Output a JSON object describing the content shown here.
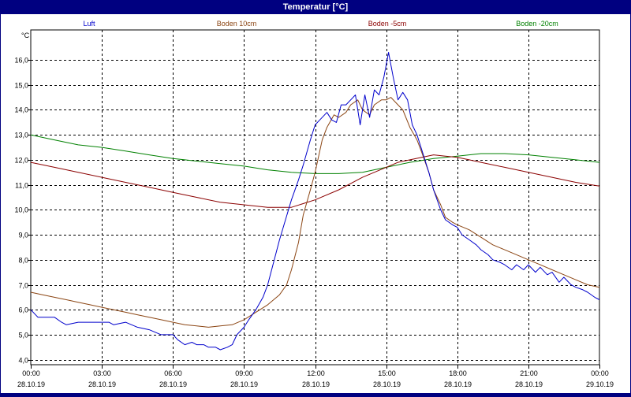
{
  "window": {
    "title": "Temperatur [°C]"
  },
  "colors": {
    "Luft": "#0000cc",
    "Boden10": "#8b4513",
    "Boden5": "#8b0000",
    "Boden20": "#008000",
    "grid": "#000000",
    "frame": "#000080"
  },
  "chart_data": {
    "type": "line",
    "title": "Temperatur [°C]",
    "ylabel": "°C",
    "ylim": [
      3.8,
      17.2
    ],
    "yticks": [
      "4,0",
      "5,0",
      "6,0",
      "7,0",
      "8,0",
      "9,0",
      "10,0",
      "11,0",
      "12,0",
      "13,0",
      "14,0",
      "15,0",
      "16,0"
    ],
    "xlim": [
      0,
      24
    ],
    "xticks": [
      {
        "time": "00:00",
        "date": "28.10.19",
        "h": 0
      },
      {
        "time": "03:00",
        "date": "28.10.19",
        "h": 3
      },
      {
        "time": "06:00",
        "date": "28.10.19",
        "h": 6
      },
      {
        "time": "09:00",
        "date": "28.10.19",
        "h": 9
      },
      {
        "time": "12:00",
        "date": "28.10.19",
        "h": 12
      },
      {
        "time": "15:00",
        "date": "28.10.19",
        "h": 15
      },
      {
        "time": "18:00",
        "date": "28.10.19",
        "h": 18
      },
      {
        "time": "21:00",
        "date": "28.10.19",
        "h": 21
      },
      {
        "time": "00:00",
        "date": "29.10.19",
        "h": 24
      }
    ],
    "grid": true,
    "legend_position": "top",
    "series": [
      {
        "name": "Luft",
        "color": "#0000cc",
        "x": [
          0,
          0.3,
          0.5,
          1,
          1.3,
          1.5,
          2,
          2.5,
          3,
          3.3,
          3.5,
          4,
          4.5,
          5,
          5.5,
          6,
          6.2,
          6.5,
          6.8,
          7,
          7.3,
          7.5,
          7.8,
          8,
          8.3,
          8.5,
          8.7,
          9,
          9.2,
          9.5,
          9.8,
          10,
          10.5,
          11,
          11.3,
          11.5,
          11.8,
          12,
          12.2,
          12.5,
          12.7,
          12.9,
          13.1,
          13.3,
          13.5,
          13.7,
          13.9,
          14.1,
          14.3,
          14.5,
          14.7,
          14.9,
          15.1,
          15.3,
          15.5,
          15.7,
          15.9,
          16.1,
          16.3,
          16.5,
          16.8,
          17,
          17.3,
          17.5,
          17.8,
          18,
          18.2,
          18.5,
          18.8,
          19,
          19.3,
          19.5,
          19.8,
          20,
          20.3,
          20.5,
          20.8,
          21,
          21.3,
          21.5,
          21.8,
          22,
          22.3,
          22.5,
          22.8,
          23,
          23.3,
          23.5,
          23.8,
          24
        ],
        "y": [
          6.0,
          5.7,
          5.7,
          5.7,
          5.5,
          5.4,
          5.5,
          5.5,
          5.5,
          5.5,
          5.4,
          5.5,
          5.3,
          5.2,
          5.0,
          5.0,
          4.8,
          4.6,
          4.7,
          4.6,
          4.6,
          4.5,
          4.5,
          4.4,
          4.5,
          4.6,
          5.0,
          5.3,
          5.6,
          6.0,
          6.5,
          7.0,
          8.8,
          10.4,
          11.2,
          11.8,
          12.8,
          13.4,
          13.6,
          13.9,
          13.6,
          13.5,
          14.2,
          14.2,
          14.4,
          14.6,
          13.4,
          14.6,
          13.7,
          14.8,
          14.6,
          15.3,
          16.3,
          15.3,
          14.4,
          14.7,
          14.4,
          13.4,
          13.0,
          12.4,
          11.5,
          10.8,
          10.0,
          9.6,
          9.4,
          9.3,
          9.0,
          8.8,
          8.6,
          8.4,
          8.2,
          8.0,
          7.9,
          7.8,
          7.6,
          7.8,
          7.6,
          7.8,
          7.5,
          7.7,
          7.4,
          7.5,
          7.1,
          7.3,
          7.0,
          6.9,
          6.8,
          6.7,
          6.5,
          6.4
        ]
      },
      {
        "name": "Boden 10cm",
        "color": "#8b4513",
        "x": [
          0,
          0.5,
          1,
          1.5,
          2,
          2.5,
          3,
          3.5,
          4,
          4.5,
          5,
          5.5,
          6,
          6.5,
          7,
          7.5,
          8,
          8.5,
          9,
          9.5,
          10,
          10.5,
          10.8,
          11,
          11.3,
          11.5,
          11.8,
          12,
          12.3,
          12.5,
          12.8,
          13,
          13.3,
          13.5,
          13.8,
          14,
          14.3,
          14.5,
          14.8,
          15,
          15.2,
          15.4,
          15.7,
          16,
          16.3,
          16.5,
          16.8,
          17,
          17.3,
          17.5,
          17.8,
          18,
          18.5,
          19,
          19.5,
          20,
          20.5,
          21,
          21.5,
          22,
          22.5,
          23,
          23.5,
          24
        ],
        "y": [
          6.7,
          6.6,
          6.5,
          6.4,
          6.3,
          6.2,
          6.1,
          6.0,
          5.9,
          5.8,
          5.7,
          5.6,
          5.5,
          5.4,
          5.35,
          5.3,
          5.35,
          5.4,
          5.6,
          5.9,
          6.2,
          6.6,
          7.0,
          7.6,
          8.7,
          9.8,
          10.8,
          11.5,
          12.8,
          13.3,
          13.8,
          13.7,
          13.9,
          14.2,
          14.4,
          14.0,
          13.8,
          14.2,
          14.4,
          14.4,
          14.5,
          14.3,
          14.0,
          13.3,
          12.8,
          12.3,
          11.5,
          10.8,
          10.2,
          9.7,
          9.5,
          9.4,
          9.2,
          8.9,
          8.6,
          8.4,
          8.2,
          8.0,
          7.8,
          7.6,
          7.4,
          7.2,
          7.0,
          6.9
        ]
      },
      {
        "name": "Boden -5cm",
        "color": "#8b0000",
        "x": [
          0,
          1,
          2,
          3,
          4,
          5,
          6,
          7,
          8,
          9,
          10,
          11,
          12,
          13,
          14,
          15,
          15.5,
          16,
          16.5,
          17,
          17.5,
          18,
          18.5,
          19,
          20,
          21,
          22,
          23,
          24
        ],
        "y": [
          11.9,
          11.7,
          11.5,
          11.3,
          11.1,
          10.9,
          10.7,
          10.5,
          10.3,
          10.2,
          10.1,
          10.1,
          10.4,
          10.8,
          11.3,
          11.7,
          11.9,
          12.0,
          12.1,
          12.2,
          12.15,
          12.1,
          12.0,
          11.9,
          11.7,
          11.5,
          11.3,
          11.1,
          10.95
        ]
      },
      {
        "name": "Boden -20cm",
        "color": "#008000",
        "x": [
          0,
          1,
          2,
          3,
          4,
          5,
          6,
          7,
          8,
          9,
          10,
          11,
          12,
          13,
          14,
          15,
          16,
          17,
          18,
          19,
          20,
          21,
          22,
          23,
          24
        ],
        "y": [
          13.0,
          12.8,
          12.6,
          12.5,
          12.35,
          12.2,
          12.05,
          11.95,
          11.85,
          11.75,
          11.6,
          11.5,
          11.45,
          11.45,
          11.5,
          11.7,
          11.9,
          12.05,
          12.15,
          12.25,
          12.25,
          12.2,
          12.1,
          12.0,
          11.9
        ]
      }
    ]
  }
}
